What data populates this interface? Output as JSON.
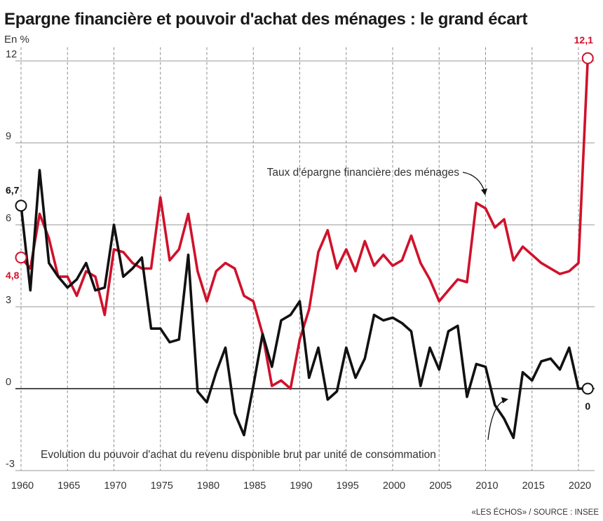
{
  "title": "Epargne financière et pouvoir d'achat des ménages : le grand écart",
  "unit": "En %",
  "source": "«LES ÉCHOS» / SOURCE : INSEE",
  "chart_data": {
    "type": "line",
    "ylim": [
      -3,
      12.5
    ],
    "xlim": [
      1959,
      2022
    ],
    "yticks": [
      -3,
      0,
      3,
      6,
      9,
      12
    ],
    "xticks": [
      1960,
      1965,
      1970,
      1975,
      1980,
      1985,
      1990,
      1995,
      2000,
      2005,
      2010,
      2015,
      2020
    ],
    "grid": {
      "horizontal": "solid",
      "vertical": "dashed"
    },
    "series": [
      {
        "name": "Taux d'épargne financière des ménages",
        "color": "#d0112b",
        "x": [
          1960,
          1961,
          1962,
          1963,
          1964,
          1965,
          1966,
          1967,
          1968,
          1969,
          1970,
          1971,
          1972,
          1973,
          1974,
          1975,
          1976,
          1977,
          1978,
          1979,
          1980,
          1981,
          1982,
          1983,
          1984,
          1985,
          1986,
          1987,
          1988,
          1989,
          1990,
          1991,
          1992,
          1993,
          1994,
          1995,
          1996,
          1997,
          1998,
          1999,
          2000,
          2001,
          2002,
          2003,
          2004,
          2005,
          2006,
          2007,
          2008,
          2009,
          2010,
          2011,
          2012,
          2013,
          2014,
          2015,
          2016,
          2017,
          2018,
          2019,
          2020,
          2021
        ],
        "values": [
          4.8,
          4.4,
          6.4,
          5.5,
          4.1,
          4.1,
          3.4,
          4.3,
          4.1,
          2.7,
          5.1,
          5.0,
          4.6,
          4.4,
          4.4,
          7.0,
          4.7,
          5.1,
          6.4,
          4.3,
          3.2,
          4.3,
          4.6,
          4.4,
          3.4,
          3.2,
          2.0,
          0.1,
          0.3,
          0.0,
          1.8,
          2.9,
          5.0,
          5.8,
          4.4,
          5.1,
          4.3,
          5.4,
          4.5,
          4.9,
          4.5,
          4.7,
          5.6,
          4.6,
          4.0,
          3.2,
          3.6,
          4.0,
          3.9,
          6.8,
          6.6,
          5.9,
          6.2,
          4.7,
          5.2,
          4.9,
          4.6,
          4.4,
          4.2,
          4.3,
          4.6,
          12.1
        ]
      },
      {
        "name": "Evolution du pouvoir d'achat du revenu disponible brut par unité de consommation",
        "color": "#111111",
        "x": [
          1960,
          1961,
          1962,
          1963,
          1964,
          1965,
          1966,
          1967,
          1968,
          1969,
          1970,
          1971,
          1972,
          1973,
          1974,
          1975,
          1976,
          1977,
          1978,
          1979,
          1980,
          1981,
          1982,
          1983,
          1984,
          1985,
          1986,
          1987,
          1988,
          1989,
          1990,
          1991,
          1992,
          1993,
          1994,
          1995,
          1996,
          1997,
          1998,
          1999,
          2000,
          2001,
          2002,
          2003,
          2004,
          2005,
          2006,
          2007,
          2008,
          2009,
          2010,
          2011,
          2012,
          2013,
          2014,
          2015,
          2016,
          2017,
          2018,
          2019,
          2020,
          2021
        ],
        "values": [
          6.7,
          3.6,
          8.0,
          4.6,
          4.1,
          3.7,
          4.0,
          4.6,
          3.6,
          3.7,
          6.0,
          4.1,
          4.4,
          4.8,
          2.2,
          2.2,
          1.7,
          1.8,
          4.9,
          -0.1,
          -0.5,
          0.6,
          1.5,
          -0.9,
          -1.7,
          0.1,
          2.0,
          0.8,
          2.5,
          2.7,
          3.2,
          0.4,
          1.5,
          -0.4,
          -0.1,
          1.5,
          0.4,
          1.1,
          2.7,
          2.5,
          2.6,
          2.4,
          2.1,
          0.1,
          1.5,
          0.7,
          2.1,
          2.3,
          -0.3,
          0.9,
          0.8,
          -0.6,
          -1.1,
          -1.8,
          0.6,
          0.3,
          1.0,
          1.1,
          0.7,
          1.5,
          0.0,
          0.0
        ]
      }
    ],
    "annotations": {
      "epargne_start": "4,8",
      "epargne_end": "12,1",
      "pouvoir_start": "6,7",
      "pouvoir_end": "0"
    },
    "labels": {
      "epargne": "Taux d'épargne financière des ménages",
      "pouvoir": "Evolution du pouvoir d'achat du revenu disponible brut par unité de consommation"
    }
  }
}
